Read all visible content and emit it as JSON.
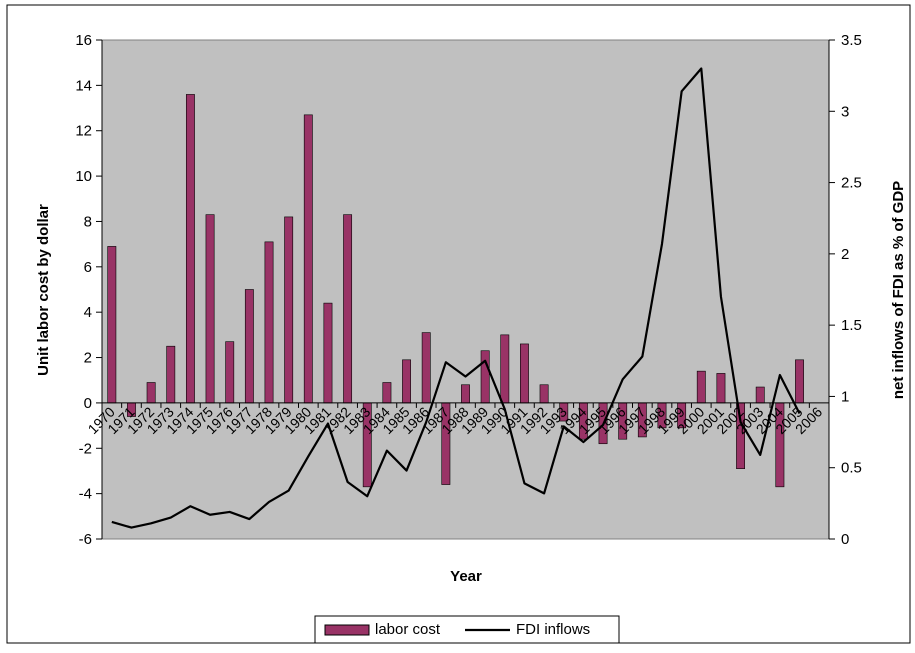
{
  "chart_data": {
    "type": "bar",
    "title": "",
    "xlabel": "Year",
    "ylabel": "Unit labor cost by dollar",
    "y2label": "net inflows of FDI as % of GDP",
    "ylim": [
      -6,
      16
    ],
    "y2lim": [
      0,
      3.5
    ],
    "yticks": [
      "-6",
      "-4",
      "-2",
      "0",
      "2",
      "4",
      "6",
      "8",
      "10",
      "12",
      "14",
      "16"
    ],
    "y2ticks": [
      "0",
      "0.5",
      "1",
      "1.5",
      "2",
      "2.5",
      "3",
      "3.5"
    ],
    "grid": false,
    "legend_position": "bottom",
    "categories": [
      "1970",
      "1971",
      "1972",
      "1973",
      "1974",
      "1975",
      "1976",
      "1977",
      "1978",
      "1979",
      "1980",
      "1981",
      "1982",
      "1983",
      "1984",
      "1985",
      "1986",
      "1987",
      "1988",
      "1989",
      "1990",
      "1991",
      "1992",
      "1993",
      "1994",
      "1995",
      "1996",
      "1997",
      "1998",
      "1999",
      "2000",
      "2001",
      "2002",
      "2003",
      "2004",
      "2005",
      "2006"
    ],
    "series": [
      {
        "name": "labor cost",
        "type": "bar",
        "axis": "left",
        "color": "#993366",
        "values": [
          6.9,
          -0.6,
          0.9,
          2.5,
          13.6,
          8.3,
          2.7,
          5.0,
          7.1,
          8.2,
          12.7,
          4.4,
          8.3,
          -3.7,
          0.9,
          1.9,
          3.1,
          -3.6,
          0.8,
          2.3,
          3.0,
          2.6,
          0.8,
          -0.8,
          -1.6,
          -1.8,
          -1.6,
          -1.5,
          -1.1,
          -1.1,
          1.4,
          1.3,
          -2.9,
          0.7,
          -3.7,
          1.9,
          0.0
        ]
      },
      {
        "name": "FDI inflows",
        "type": "line",
        "axis": "right",
        "color": "#000000",
        "values": [
          0.12,
          0.08,
          0.11,
          0.15,
          0.23,
          0.17,
          0.19,
          0.14,
          0.26,
          0.34,
          0.58,
          0.81,
          0.4,
          0.3,
          0.62,
          0.48,
          0.82,
          1.24,
          1.14,
          1.25,
          0.91,
          0.39,
          0.32,
          0.79,
          0.68,
          0.8,
          1.12,
          1.28,
          2.07,
          3.14,
          3.3,
          1.7,
          0.82,
          0.59,
          1.15,
          0.88,
          null
        ]
      }
    ]
  }
}
